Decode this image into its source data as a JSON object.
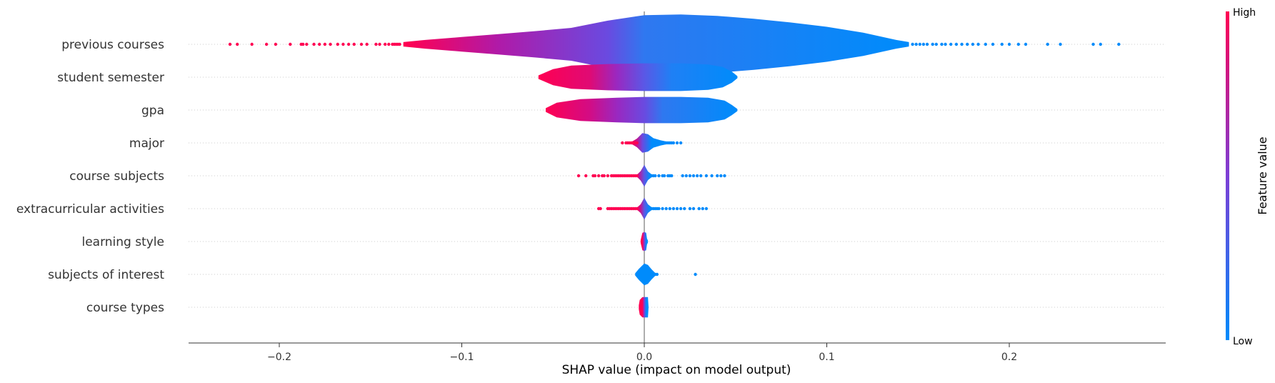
{
  "chart_data": {
    "type": "violin",
    "xlabel": "SHAP value (impact on model output)",
    "xlim": [
      -0.25,
      0.285
    ],
    "xticks": [
      -0.2,
      -0.1,
      0.0,
      0.1,
      0.2
    ],
    "xtick_labels": [
      "−0.2",
      "−0.1",
      "0.0",
      "0.1",
      "0.2"
    ],
    "colorbar": {
      "title": "Feature value",
      "high_label": "High",
      "low_label": "Low",
      "high_color": "#ff0052",
      "low_color": "#008bfb",
      "mid_color": "#7c3fd6"
    },
    "grid": "horizontal dotted per feature",
    "features": [
      {
        "name": "previous courses",
        "left_to_right_colors": [
          [
            -0.13,
            "#ff0052"
          ],
          [
            -0.08,
            "#b01aa8"
          ],
          [
            -0.02,
            "#6a4ae0"
          ],
          [
            0.0,
            "#2f78f0"
          ],
          [
            0.14,
            "#008bfb"
          ]
        ],
        "violin": [
          [
            -0.132,
            0.6
          ],
          [
            -0.12,
            1.2
          ],
          [
            -0.1,
            2.0
          ],
          [
            -0.08,
            2.8
          ],
          [
            -0.06,
            3.6
          ],
          [
            -0.04,
            4.5
          ],
          [
            -0.02,
            6.5
          ],
          [
            0.0,
            8.0
          ],
          [
            0.02,
            8.2
          ],
          [
            0.04,
            7.8
          ],
          [
            0.06,
            7.0
          ],
          [
            0.08,
            6.0
          ],
          [
            0.1,
            4.8
          ],
          [
            0.12,
            3.2
          ],
          [
            0.138,
            1.2
          ],
          [
            0.145,
            0.6
          ]
        ],
        "points_high": [
          -0.227,
          -0.223,
          -0.215,
          -0.207,
          -0.202,
          -0.194,
          -0.188,
          -0.187,
          -0.185,
          -0.181,
          -0.178,
          -0.175,
          -0.172,
          -0.168,
          -0.165,
          -0.162,
          -0.159,
          -0.155,
          -0.152,
          -0.147,
          -0.145,
          -0.142,
          -0.14,
          -0.138,
          -0.137,
          -0.136,
          -0.135,
          -0.134
        ],
        "points_low": [
          0.147,
          0.149,
          0.151,
          0.153,
          0.155,
          0.158,
          0.16,
          0.163,
          0.165,
          0.168,
          0.171,
          0.174,
          0.177,
          0.18,
          0.183,
          0.187,
          0.191,
          0.196,
          0.2,
          0.205,
          0.209,
          0.221,
          0.228,
          0.246,
          0.25,
          0.26
        ]
      },
      {
        "name": "student semester",
        "left_to_right_colors": [
          [
            -0.058,
            "#ff0052"
          ],
          [
            -0.03,
            "#e00a74"
          ],
          [
            -0.015,
            "#9a28c0"
          ],
          [
            0.0,
            "#5a58e6"
          ],
          [
            0.015,
            "#1f80f5"
          ],
          [
            0.05,
            "#008bfb"
          ]
        ],
        "violin": [
          [
            -0.058,
            0.5
          ],
          [
            -0.05,
            2.2
          ],
          [
            -0.04,
            3.2
          ],
          [
            -0.02,
            3.6
          ],
          [
            0.0,
            3.8
          ],
          [
            0.02,
            3.8
          ],
          [
            0.035,
            3.5
          ],
          [
            0.043,
            2.8
          ],
          [
            0.048,
            1.5
          ],
          [
            0.051,
            0.3
          ]
        ],
        "points_high": [],
        "points_low": []
      },
      {
        "name": "gpa",
        "left_to_right_colors": [
          [
            -0.054,
            "#ff0052"
          ],
          [
            -0.03,
            "#d30c84"
          ],
          [
            -0.015,
            "#9a28c0"
          ],
          [
            0.0,
            "#6a4ae0"
          ],
          [
            0.01,
            "#2f78f0"
          ],
          [
            0.05,
            "#008bfb"
          ]
        ],
        "violin": [
          [
            -0.054,
            0.5
          ],
          [
            -0.048,
            2.0
          ],
          [
            -0.035,
            3.0
          ],
          [
            -0.015,
            3.4
          ],
          [
            0.0,
            3.6
          ],
          [
            0.02,
            3.6
          ],
          [
            0.035,
            3.4
          ],
          [
            0.044,
            2.6
          ],
          [
            0.048,
            1.4
          ],
          [
            0.051,
            0.3
          ]
        ],
        "points_high": [],
        "points_low": []
      },
      {
        "name": "major",
        "left_to_right_colors": [
          [
            -0.01,
            "#ff0052"
          ],
          [
            -0.004,
            "#c01492"
          ],
          [
            -0.001,
            "#6a4ae0"
          ],
          [
            0.004,
            "#008bfb"
          ]
        ],
        "violin": [
          [
            -0.007,
            0.3
          ],
          [
            -0.004,
            1.2
          ],
          [
            -0.001,
            2.7
          ],
          [
            0.002,
            2.4
          ],
          [
            0.005,
            1.3
          ],
          [
            0.009,
            0.7
          ],
          [
            0.012,
            0.4
          ]
        ],
        "points_high": [
          -0.012,
          -0.01,
          -0.009,
          -0.008,
          -0.007,
          -0.006,
          -0.005,
          -0.004
        ],
        "points_low": [
          0.005,
          0.006,
          0.007,
          0.008,
          0.009,
          0.01,
          0.011,
          0.012,
          0.013,
          0.014,
          0.015,
          0.016,
          0.018,
          0.02
        ]
      },
      {
        "name": "course subjects",
        "left_to_right_colors": [
          [
            -0.01,
            "#ff0052"
          ],
          [
            -0.003,
            "#c01492"
          ],
          [
            0.0,
            "#5a58e6"
          ],
          [
            0.003,
            "#008bfb"
          ]
        ],
        "violin": [
          [
            -0.004,
            0.3
          ],
          [
            -0.002,
            1.3
          ],
          [
            0.0,
            3.0
          ],
          [
            0.002,
            1.2
          ],
          [
            0.004,
            0.4
          ]
        ],
        "points_high": [
          -0.036,
          -0.032,
          -0.028,
          -0.027,
          -0.025,
          -0.023,
          -0.022,
          -0.02,
          -0.018,
          -0.017,
          -0.016,
          -0.015,
          -0.014,
          -0.013,
          -0.012,
          -0.011,
          -0.01,
          -0.009,
          -0.008,
          -0.007,
          -0.006,
          -0.005,
          -0.004
        ],
        "points_low": [
          0.004,
          0.005,
          0.006,
          0.008,
          0.01,
          0.011,
          0.013,
          0.014,
          0.015,
          0.021,
          0.023,
          0.025,
          0.027,
          0.029,
          0.031,
          0.034,
          0.037,
          0.04,
          0.042,
          0.044
        ]
      },
      {
        "name": "extracurricular activities",
        "left_to_right_colors": [
          [
            -0.01,
            "#ff0052"
          ],
          [
            -0.002,
            "#c01492"
          ],
          [
            0.0,
            "#5a58e6"
          ],
          [
            0.003,
            "#008bfb"
          ]
        ],
        "violin": [
          [
            -0.004,
            0.3
          ],
          [
            -0.002,
            1.2
          ],
          [
            0.0,
            3.0
          ],
          [
            0.002,
            1.2
          ],
          [
            0.004,
            0.4
          ]
        ],
        "points_high": [
          -0.025,
          -0.024,
          -0.02,
          -0.019,
          -0.018,
          -0.017,
          -0.016,
          -0.015,
          -0.014,
          -0.013,
          -0.012,
          -0.011,
          -0.01,
          -0.009,
          -0.008,
          -0.007,
          -0.006,
          -0.005,
          -0.004
        ],
        "points_low": [
          0.004,
          0.005,
          0.006,
          0.007,
          0.008,
          0.01,
          0.012,
          0.014,
          0.016,
          0.018,
          0.02,
          0.022,
          0.025,
          0.027,
          0.03,
          0.032,
          0.034
        ]
      },
      {
        "name": "learning style",
        "left_to_right_colors": [
          [
            -0.001,
            "#ff0052"
          ],
          [
            0.0,
            "#7c3fd6"
          ],
          [
            0.001,
            "#008bfb"
          ]
        ],
        "violin": [
          [
            -0.002,
            0.4
          ],
          [
            -0.001,
            2.4
          ],
          [
            0.0,
            2.6
          ],
          [
            0.001,
            2.4
          ],
          [
            0.0015,
            0.8
          ],
          [
            0.002,
            0.3
          ]
        ],
        "points_high": [],
        "points_low": []
      },
      {
        "name": "subjects of interest",
        "left_to_right_colors": [
          [
            -0.004,
            "#008bfb"
          ],
          [
            0.004,
            "#008bfb"
          ]
        ],
        "violin": [
          [
            -0.005,
            0.3
          ],
          [
            -0.003,
            1.5
          ],
          [
            0.0,
            3.0
          ],
          [
            0.002,
            2.6
          ],
          [
            0.004,
            1.4
          ],
          [
            0.006,
            0.4
          ]
        ],
        "points_high": [],
        "points_low": [
          0.006,
          0.007,
          0.028
        ]
      },
      {
        "name": "course types",
        "left_to_right_colors": [
          [
            -0.003,
            "#ff0052"
          ],
          [
            -0.001,
            "#ff0052"
          ],
          [
            0.0,
            "#7c3fd6"
          ],
          [
            0.001,
            "#008bfb"
          ]
        ],
        "violin": [
          [
            -0.003,
            0.5
          ],
          [
            -0.0025,
            2.0
          ],
          [
            -0.001,
            2.8
          ],
          [
            0.0,
            2.8
          ],
          [
            0.002,
            2.8
          ],
          [
            0.0023,
            0.3
          ]
        ],
        "points_high": [],
        "points_low": []
      }
    ]
  }
}
